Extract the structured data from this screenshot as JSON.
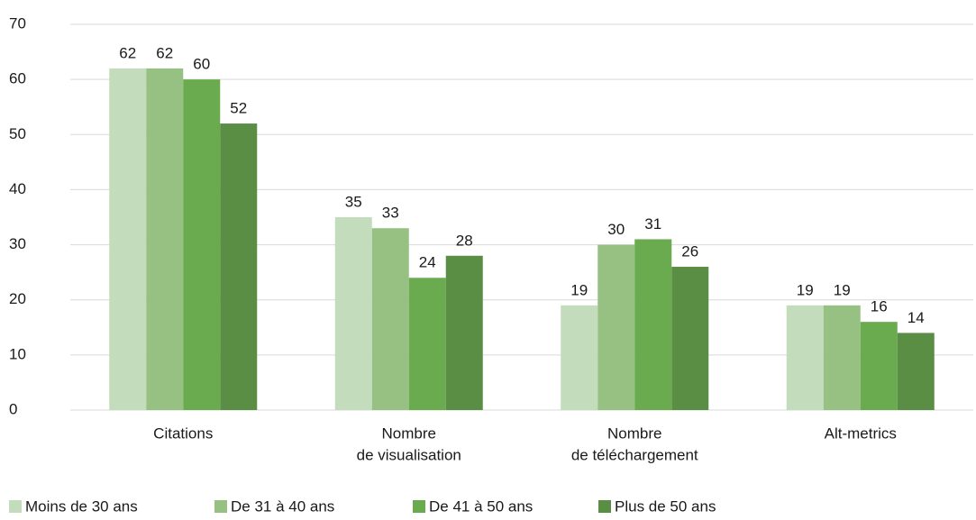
{
  "chart_data": {
    "type": "bar",
    "categories": [
      [
        "Citations"
      ],
      [
        "Nombre",
        "de visualisation"
      ],
      [
        "Nombre",
        "de téléchargement"
      ],
      [
        "Alt-metrics"
      ]
    ],
    "series": [
      {
        "name": "Moins de 30 ans",
        "color": "#c3dcbb",
        "values": [
          62,
          35,
          19,
          19
        ]
      },
      {
        "name": "De 31 à 40 ans",
        "color": "#97c083",
        "values": [
          62,
          33,
          30,
          19
        ]
      },
      {
        "name": "De 41 à 50 ans",
        "color": "#6aab4f",
        "values": [
          60,
          24,
          31,
          16
        ]
      },
      {
        "name": "Plus de 50 ans",
        "color": "#5b8e45",
        "values": [
          52,
          28,
          26,
          14
        ]
      }
    ],
    "ylim": [
      0,
      70
    ],
    "yticks": [
      0,
      10,
      20,
      30,
      40,
      50,
      60,
      70
    ],
    "grid": true,
    "legend": "bottom"
  }
}
